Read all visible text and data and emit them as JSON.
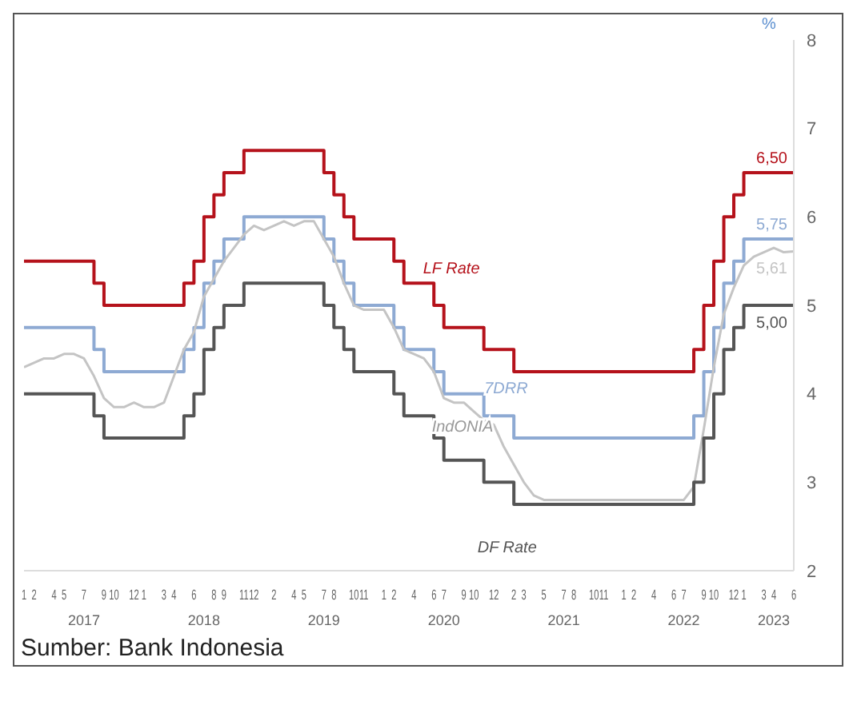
{
  "chart_data": {
    "type": "step",
    "ylabel": "%",
    "ylim": [
      2,
      8
    ],
    "yticks": [
      2,
      3,
      4,
      5,
      6,
      7,
      8
    ],
    "xlim": [
      "2017-01",
      "2023-06"
    ],
    "x": [
      "2017-01",
      "2017-02",
      "2017-03",
      "2017-04",
      "2017-05",
      "2017-06",
      "2017-07",
      "2017-08",
      "2017-09",
      "2017-10",
      "2017-11",
      "2017-12",
      "2018-01",
      "2018-02",
      "2018-03",
      "2018-04",
      "2018-05",
      "2018-06",
      "2018-07",
      "2018-08",
      "2018-09",
      "2018-10",
      "2018-11",
      "2018-12",
      "2019-01",
      "2019-02",
      "2019-03",
      "2019-04",
      "2019-05",
      "2019-06",
      "2019-07",
      "2019-08",
      "2019-09",
      "2019-10",
      "2019-11",
      "2019-12",
      "2020-01",
      "2020-02",
      "2020-03",
      "2020-04",
      "2020-05",
      "2020-06",
      "2020-07",
      "2020-08",
      "2020-09",
      "2020-10",
      "2020-11",
      "2020-12",
      "2021-01",
      "2021-02",
      "2021-03",
      "2021-04",
      "2021-05",
      "2021-06",
      "2021-07",
      "2021-08",
      "2021-09",
      "2021-10",
      "2021-11",
      "2021-12",
      "2022-01",
      "2022-02",
      "2022-03",
      "2022-04",
      "2022-05",
      "2022-06",
      "2022-07",
      "2022-08",
      "2022-09",
      "2022-10",
      "2022-11",
      "2022-12",
      "2023-01",
      "2023-02",
      "2023-03",
      "2023-04",
      "2023-05",
      "2023-06"
    ],
    "xticks": [
      {
        "value": "2017-01",
        "label": "1"
      },
      {
        "value": "2017-02",
        "label": "2"
      },
      {
        "value": "2017-04",
        "label": "4"
      },
      {
        "value": "2017-05",
        "label": "5"
      },
      {
        "value": "2017-07",
        "label": "7"
      },
      {
        "value": "2017-09",
        "label": "9"
      },
      {
        "value": "2017-10",
        "label": "10"
      },
      {
        "value": "2017-12",
        "label": "12"
      },
      {
        "value": "2018-01",
        "label": "1"
      },
      {
        "value": "2018-03",
        "label": "3"
      },
      {
        "value": "2018-04",
        "label": "4"
      },
      {
        "value": "2018-06",
        "label": "6"
      },
      {
        "value": "2018-08",
        "label": "8"
      },
      {
        "value": "2018-09",
        "label": "9"
      },
      {
        "value": "2018-11",
        "label": "11"
      },
      {
        "value": "2018-12",
        "label": "12"
      },
      {
        "value": "2019-02",
        "label": "2"
      },
      {
        "value": "2019-04",
        "label": "4"
      },
      {
        "value": "2019-05",
        "label": "5"
      },
      {
        "value": "2019-07",
        "label": "7"
      },
      {
        "value": "2019-08",
        "label": "8"
      },
      {
        "value": "2019-10",
        "label": "10"
      },
      {
        "value": "2019-11",
        "label": "11"
      },
      {
        "value": "2020-01",
        "label": "1"
      },
      {
        "value": "2020-02",
        "label": "2"
      },
      {
        "value": "2020-04",
        "label": "4"
      },
      {
        "value": "2020-06",
        "label": "6"
      },
      {
        "value": "2020-07",
        "label": "7"
      },
      {
        "value": "2020-09",
        "label": "9"
      },
      {
        "value": "2020-10",
        "label": "10"
      },
      {
        "value": "2020-12",
        "label": "12"
      },
      {
        "value": "2021-02",
        "label": "2"
      },
      {
        "value": "2021-03",
        "label": "3"
      },
      {
        "value": "2021-05",
        "label": "5"
      },
      {
        "value": "2021-07",
        "label": "7"
      },
      {
        "value": "2021-08",
        "label": "8"
      },
      {
        "value": "2021-10",
        "label": "10"
      },
      {
        "value": "2021-11",
        "label": "11"
      },
      {
        "value": "2022-01",
        "label": "1"
      },
      {
        "value": "2022-02",
        "label": "2"
      },
      {
        "value": "2022-04",
        "label": "4"
      },
      {
        "value": "2022-06",
        "label": "6"
      },
      {
        "value": "2022-07",
        "label": "7"
      },
      {
        "value": "2022-09",
        "label": "9"
      },
      {
        "value": "2022-10",
        "label": "10"
      },
      {
        "value": "2022-12",
        "label": "12"
      },
      {
        "value": "2023-01",
        "label": "1"
      },
      {
        "value": "2023-03",
        "label": "3"
      },
      {
        "value": "2023-04",
        "label": "4"
      },
      {
        "value": "2023-06",
        "label": "6"
      }
    ],
    "x2lim": [
      "2017-01",
      "2023-06"
    ],
    "x2ticks": [
      {
        "value": "2017-07",
        "label": "2017"
      },
      {
        "value": "2018-07",
        "label": "2018"
      },
      {
        "value": "2019-07",
        "label": "2019"
      },
      {
        "value": "2020-07",
        "label": "2020"
      },
      {
        "value": "2021-07",
        "label": "2021"
      },
      {
        "value": "2022-07",
        "label": "2022"
      },
      {
        "value": "2023-04",
        "label": "2023"
      }
    ],
    "series": [
      {
        "name": "LF Rate",
        "color": "#b5121b",
        "values": [
          5.5,
          5.5,
          5.5,
          5.5,
          5.5,
          5.5,
          5.5,
          5.25,
          5.0,
          5.0,
          5.0,
          5.0,
          5.0,
          5.0,
          5.0,
          5.0,
          5.25,
          5.5,
          6.0,
          6.25,
          6.5,
          6.5,
          6.75,
          6.75,
          6.75,
          6.75,
          6.75,
          6.75,
          6.75,
          6.75,
          6.5,
          6.25,
          6.0,
          5.75,
          5.75,
          5.75,
          5.75,
          5.5,
          5.25,
          5.25,
          5.25,
          5.0,
          4.75,
          4.75,
          4.75,
          4.75,
          4.5,
          4.5,
          4.5,
          4.25,
          4.25,
          4.25,
          4.25,
          4.25,
          4.25,
          4.25,
          4.25,
          4.25,
          4.25,
          4.25,
          4.25,
          4.25,
          4.25,
          4.25,
          4.25,
          4.25,
          4.25,
          4.5,
          5.0,
          5.5,
          6.0,
          6.25,
          6.5,
          6.5,
          6.5,
          6.5,
          6.5,
          6.5
        ]
      },
      {
        "name": "7DRR",
        "color": "#8eaad3",
        "values": [
          4.75,
          4.75,
          4.75,
          4.75,
          4.75,
          4.75,
          4.75,
          4.5,
          4.25,
          4.25,
          4.25,
          4.25,
          4.25,
          4.25,
          4.25,
          4.25,
          4.5,
          4.75,
          5.25,
          5.5,
          5.75,
          5.75,
          6.0,
          6.0,
          6.0,
          6.0,
          6.0,
          6.0,
          6.0,
          6.0,
          5.75,
          5.5,
          5.25,
          5.0,
          5.0,
          5.0,
          5.0,
          4.75,
          4.5,
          4.5,
          4.5,
          4.25,
          4.0,
          4.0,
          4.0,
          4.0,
          3.75,
          3.75,
          3.75,
          3.5,
          3.5,
          3.5,
          3.5,
          3.5,
          3.5,
          3.5,
          3.5,
          3.5,
          3.5,
          3.5,
          3.5,
          3.5,
          3.5,
          3.5,
          3.5,
          3.5,
          3.5,
          3.75,
          4.25,
          4.75,
          5.25,
          5.5,
          5.75,
          5.75,
          5.75,
          5.75,
          5.75,
          5.75
        ]
      },
      {
        "name": "IndONIA",
        "type": "line",
        "color": "#c4c4c4",
        "values": [
          4.3,
          4.35,
          4.4,
          4.4,
          4.45,
          4.45,
          4.4,
          4.2,
          3.95,
          3.85,
          3.85,
          3.9,
          3.85,
          3.85,
          3.9,
          4.2,
          4.5,
          4.7,
          5.1,
          5.3,
          5.5,
          5.65,
          5.8,
          5.9,
          5.85,
          5.9,
          5.95,
          5.9,
          5.95,
          5.95,
          5.75,
          5.55,
          5.25,
          5.0,
          4.95,
          4.95,
          4.95,
          4.75,
          4.5,
          4.45,
          4.4,
          4.25,
          3.95,
          3.9,
          3.9,
          3.8,
          3.7,
          3.65,
          3.4,
          3.2,
          3.0,
          2.85,
          2.8,
          2.8,
          2.8,
          2.8,
          2.8,
          2.8,
          2.8,
          2.8,
          2.8,
          2.8,
          2.8,
          2.8,
          2.8,
          2.8,
          2.8,
          2.95,
          3.6,
          4.3,
          4.9,
          5.2,
          5.45,
          5.55,
          5.6,
          5.65,
          5.6,
          5.61
        ]
      },
      {
        "name": "DF Rate",
        "color": "#555555",
        "values": [
          4.0,
          4.0,
          4.0,
          4.0,
          4.0,
          4.0,
          4.0,
          3.75,
          3.5,
          3.5,
          3.5,
          3.5,
          3.5,
          3.5,
          3.5,
          3.5,
          3.75,
          4.0,
          4.5,
          4.75,
          5.0,
          5.0,
          5.25,
          5.25,
          5.25,
          5.25,
          5.25,
          5.25,
          5.25,
          5.25,
          5.0,
          4.75,
          4.5,
          4.25,
          4.25,
          4.25,
          4.25,
          4.0,
          3.75,
          3.75,
          3.75,
          3.5,
          3.25,
          3.25,
          3.25,
          3.25,
          3.0,
          3.0,
          3.0,
          2.75,
          2.75,
          2.75,
          2.75,
          2.75,
          2.75,
          2.75,
          2.75,
          2.75,
          2.75,
          2.75,
          2.75,
          2.75,
          2.75,
          2.75,
          2.75,
          2.75,
          2.75,
          3.0,
          3.5,
          4.0,
          4.5,
          4.75,
          5.0,
          5.0,
          5.0,
          5.0,
          5.0,
          5.0
        ]
      }
    ],
    "annotations": [
      {
        "text": "6,50",
        "x": "2023-06",
        "y": 6.5
      },
      {
        "text": "5,75",
        "x": "2023-06",
        "y": 5.75
      },
      {
        "text": "5,61",
        "x": "2023-06",
        "y": 5.61
      },
      {
        "text": "5,00",
        "x": "2023-06",
        "y": 5.0
      },
      "Sumber: Bank Indonesia"
    ]
  }
}
